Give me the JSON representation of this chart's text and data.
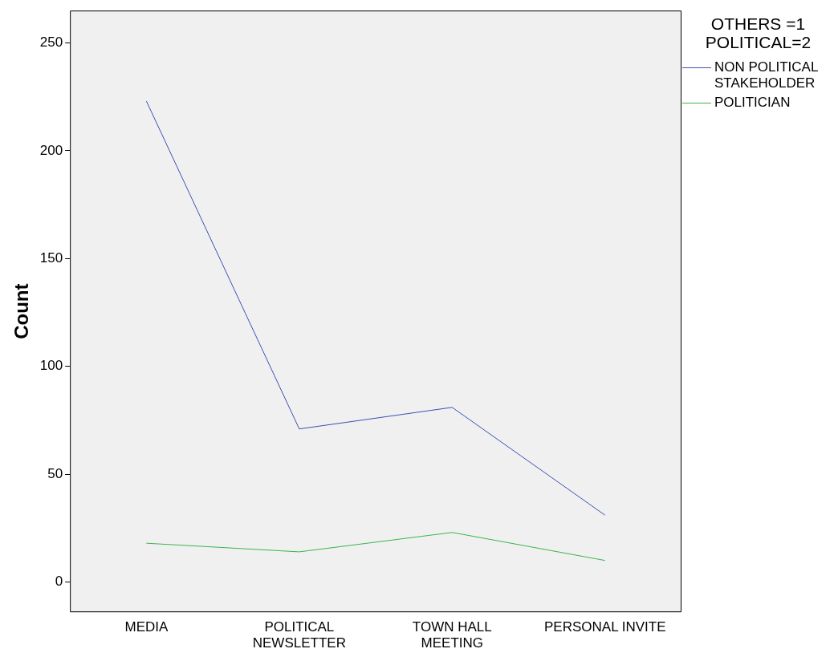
{
  "chart_data": {
    "type": "line",
    "ylabel": "Count",
    "legend_title": "OTHERS =1\nPOLITICAL=2",
    "categories": [
      "MEDIA",
      "POLITICAL NEWSLETTER",
      "TOWN HALL MEETING",
      "PERSONAL INVITE"
    ],
    "series": [
      {
        "name": "NON POLITICAL STAKEHOLDER",
        "color": "#3c50b4",
        "values": [
          223,
          71,
          81,
          31
        ]
      },
      {
        "name": "POLITICIAN",
        "color": "#3cb44b",
        "values": [
          18,
          14,
          23,
          10
        ]
      }
    ],
    "ylim": [
      -14,
      265
    ],
    "yticks": [
      0,
      50,
      100,
      150,
      200,
      250
    ],
    "grid": false,
    "legend": "right",
    "marker": "none",
    "line_style": "solid"
  }
}
